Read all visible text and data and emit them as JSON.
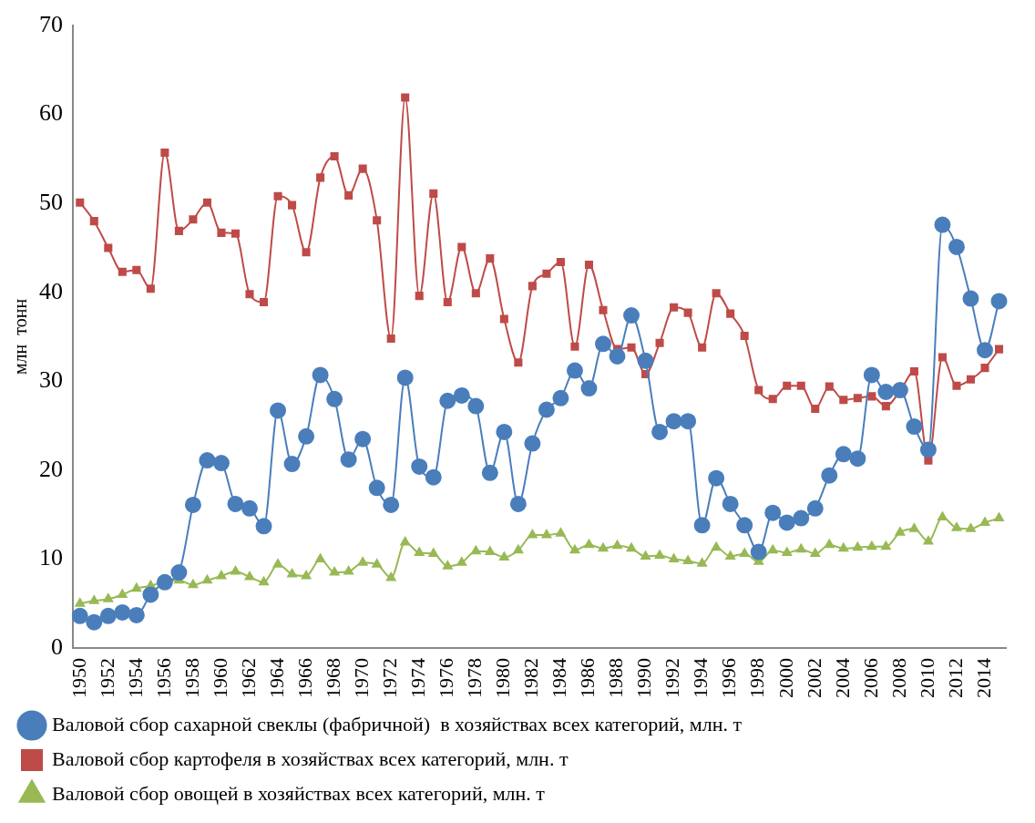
{
  "chart_data": {
    "type": "line",
    "ylabel": "млн  тонн",
    "ylim": [
      0,
      70
    ],
    "yticks": [
      0,
      10,
      20,
      30,
      40,
      50,
      60,
      70
    ],
    "grid": false,
    "legend": "bottom",
    "categories": [
      "1950",
      null,
      "1952",
      null,
      "1954",
      null,
      "1956",
      null,
      "1958",
      null,
      "1960",
      null,
      "1962",
      null,
      "1964",
      null,
      "1966",
      null,
      "1968",
      null,
      "1970",
      null,
      "1972",
      null,
      "1974",
      null,
      "1976",
      null,
      "1978",
      null,
      "1980",
      null,
      "1982",
      null,
      "1984",
      null,
      "1986",
      null,
      "1988",
      null,
      "1990",
      null,
      "1992",
      null,
      "1994",
      null,
      "1996",
      null,
      "1998",
      null,
      "2000",
      null,
      "2002",
      null,
      "2004",
      null,
      "2006",
      null,
      "2008",
      null,
      "2010",
      null,
      "2012",
      null,
      "2014",
      null
    ],
    "series": [
      {
        "name": "Валовой сбор сахарной свеклы (фабричной)  в хозяйствах всех категорий, млн. т",
        "color": "#4a7ebb",
        "marker": "circle",
        "values": [
          3.6,
          2.9,
          3.6,
          4.0,
          3.7,
          6.0,
          7.4,
          8.5,
          16.1,
          21.1,
          20.8,
          16.2,
          15.7,
          13.7,
          26.7,
          20.7,
          23.8,
          30.7,
          28.0,
          21.2,
          23.5,
          18.0,
          16.1,
          30.4,
          20.4,
          19.2,
          27.8,
          28.4,
          27.2,
          19.7,
          24.3,
          16.2,
          23.0,
          26.8,
          28.1,
          31.2,
          29.2,
          34.2,
          32.8,
          37.4,
          32.3,
          24.3,
          25.5,
          25.5,
          13.8,
          19.1,
          16.2,
          13.8,
          10.8,
          15.2,
          14.1,
          14.6,
          15.7,
          19.4,
          21.8,
          21.3,
          30.7,
          28.8,
          29.0,
          24.9,
          22.3,
          47.6,
          45.1,
          39.3,
          33.5,
          39.0
        ]
      },
      {
        "name": "Валовой сбор картофеля в хозяйствах всех категорий, млн. т",
        "color": "#be4b48",
        "marker": "square",
        "values": [
          50.1,
          48.0,
          45.0,
          42.3,
          42.5,
          40.4,
          55.7,
          46.9,
          48.2,
          50.1,
          46.7,
          46.6,
          39.8,
          38.9,
          50.8,
          49.8,
          44.5,
          52.9,
          55.3,
          50.9,
          53.9,
          48.1,
          34.8,
          61.9,
          39.6,
          51.1,
          38.9,
          45.1,
          39.9,
          43.8,
          37.0,
          32.1,
          40.7,
          42.1,
          43.4,
          33.9,
          43.1,
          38.0,
          33.6,
          33.8,
          30.8,
          34.3,
          38.3,
          37.7,
          33.8,
          39.9,
          37.6,
          35.1,
          29.0,
          28.0,
          29.5,
          29.5,
          26.9,
          29.4,
          27.9,
          28.1,
          28.3,
          27.2,
          28.9,
          31.1,
          21.1,
          32.7,
          29.5,
          30.2,
          31.5,
          33.6
        ]
      },
      {
        "name": "Валовой сбор овощей в хозяйствах всех категорий, млн. т",
        "color": "#98b954",
        "marker": "triangle",
        "values": [
          5.0,
          5.3,
          5.5,
          6.0,
          6.7,
          7.0,
          7.5,
          7.6,
          7.1,
          7.6,
          8.1,
          8.6,
          8.0,
          7.4,
          9.4,
          8.3,
          8.1,
          10.0,
          8.5,
          8.6,
          9.6,
          9.4,
          7.9,
          11.9,
          10.7,
          10.6,
          9.2,
          9.6,
          10.9,
          10.8,
          10.2,
          11.0,
          12.7,
          12.7,
          12.9,
          11.0,
          11.6,
          11.2,
          11.5,
          11.2,
          10.3,
          10.4,
          10.0,
          9.8,
          9.5,
          11.3,
          10.3,
          10.6,
          9.7,
          11.0,
          10.7,
          11.1,
          10.6,
          11.6,
          11.2,
          11.3,
          11.4,
          11.4,
          13.0,
          13.4,
          12.0,
          14.7,
          13.5,
          13.4,
          14.1,
          14.6
        ]
      }
    ]
  }
}
